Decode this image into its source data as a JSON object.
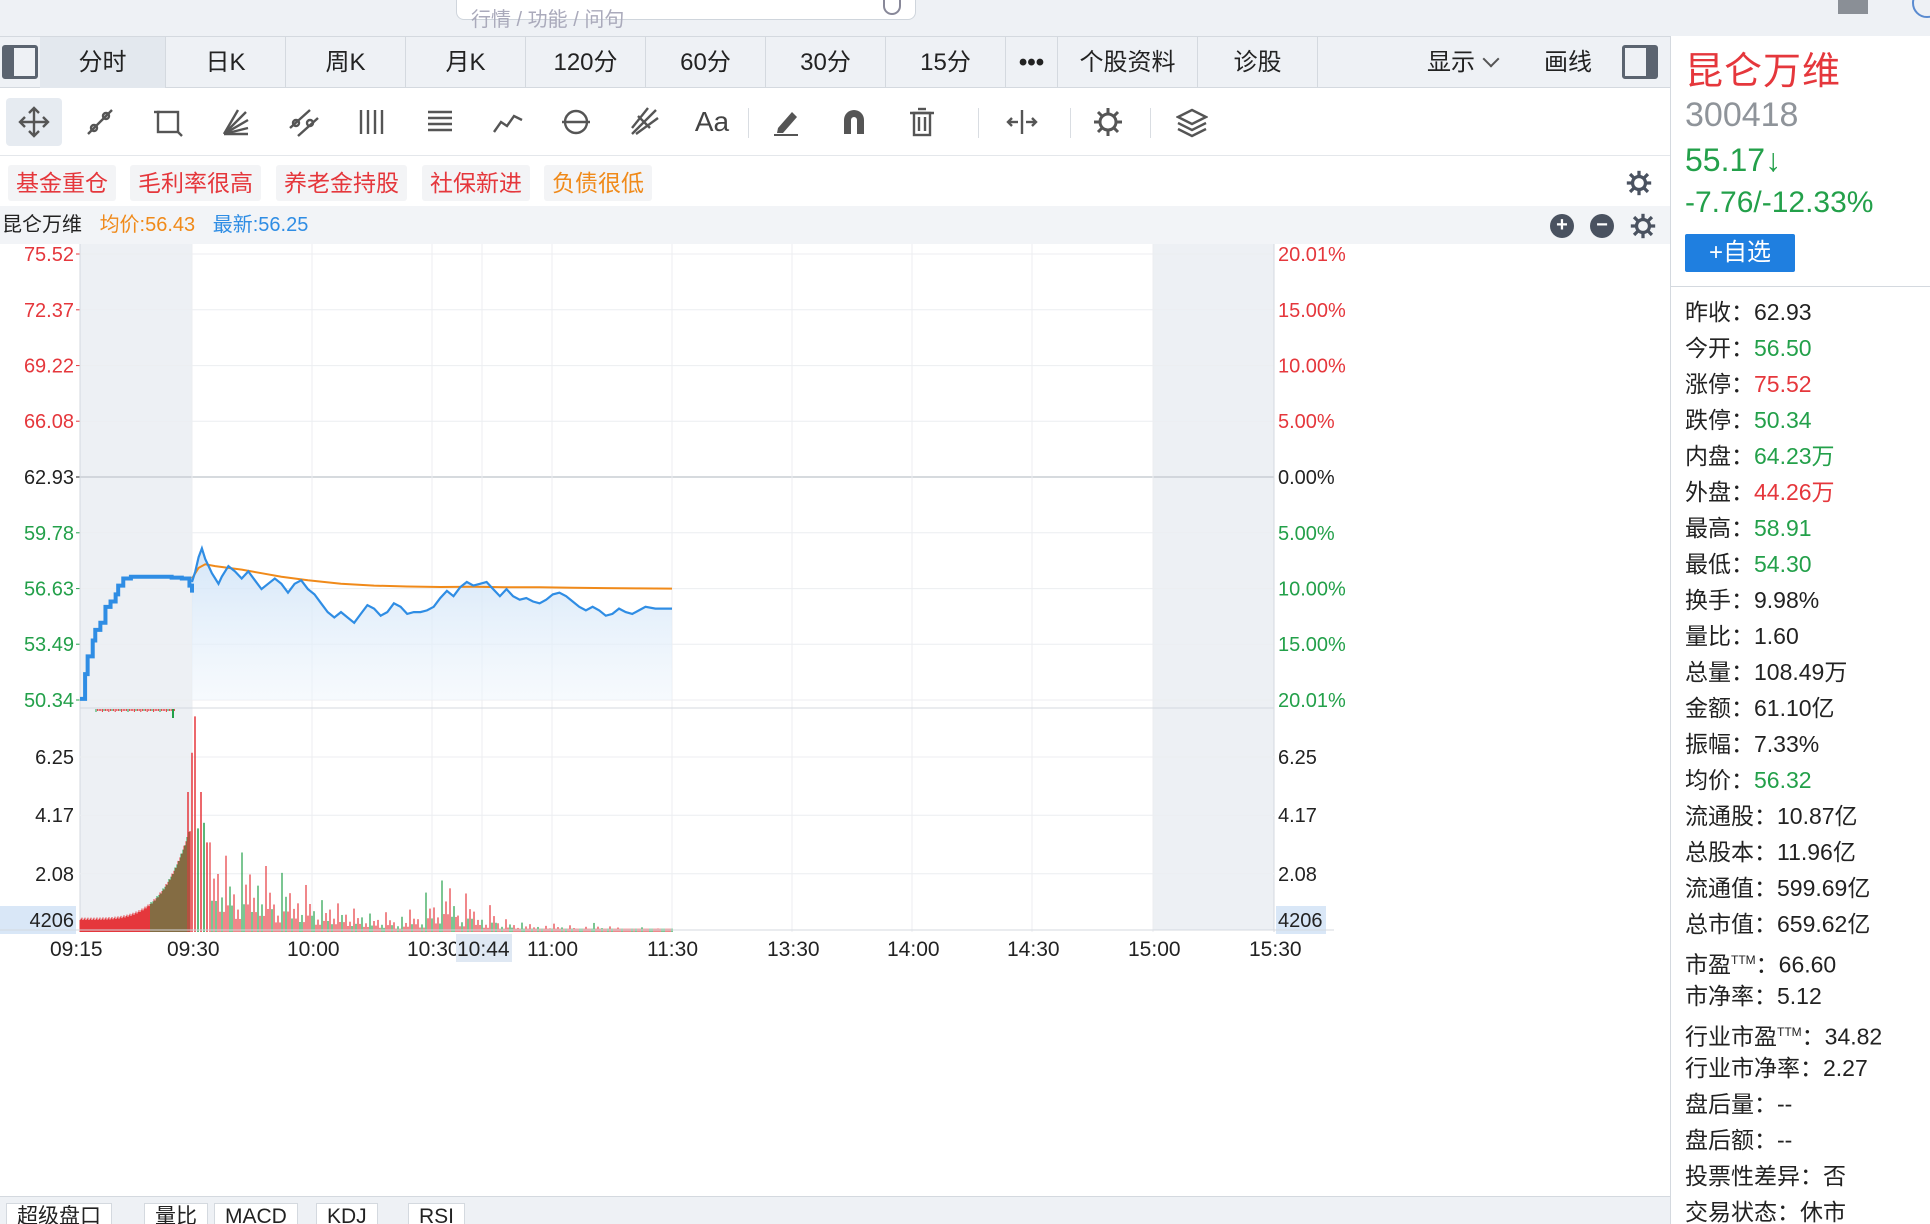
{
  "search": {
    "placeholder": "行情 / 功能 / 问句"
  },
  "tabs": [
    "分时",
    "日K",
    "周K",
    "月K",
    "120分",
    "60分",
    "30分",
    "15分",
    "•••",
    "个股资料",
    "诊股"
  ],
  "tab_active": "分时",
  "display_label": "显示",
  "draw_label": "画线",
  "tags": [
    "基金重仓",
    "毛利率很高",
    "养老金持股",
    "社保新进",
    "负债很低"
  ],
  "chart_header": {
    "name": "昆仑万维",
    "avg_label": "均价:56.43",
    "latest_label": "最新:56.25"
  },
  "stock": {
    "name": "昆仑万维",
    "code": "300418",
    "price": "55.17↓",
    "change": "-7.76/-12.33%",
    "watch_button": "+自选"
  },
  "stats": [
    {
      "label": "昨收：",
      "value": "62.93",
      "color": "neutral"
    },
    {
      "label": "今开：",
      "value": "56.50",
      "color": "down"
    },
    {
      "label": "涨停：",
      "value": "75.52",
      "color": "up"
    },
    {
      "label": "跌停：",
      "value": "50.34",
      "color": "down"
    },
    {
      "label": "内盘：",
      "value": "64.23万",
      "color": "down"
    },
    {
      "label": "外盘：",
      "value": "44.26万",
      "color": "up"
    },
    {
      "label": "最高：",
      "value": "58.91",
      "color": "down"
    },
    {
      "label": "最低：",
      "value": "54.30",
      "color": "down"
    },
    {
      "label": "换手：",
      "value": "9.98%",
      "color": "neutral"
    },
    {
      "label": "量比：",
      "value": "1.60",
      "color": "neutral"
    },
    {
      "label": "总量：",
      "value": "108.49万",
      "color": "neutral"
    },
    {
      "label": "金额：",
      "value": "61.10亿",
      "color": "neutral"
    },
    {
      "label": "振幅：",
      "value": "7.33%",
      "color": "neutral"
    },
    {
      "label": "均价：",
      "value": "56.32",
      "color": "down"
    },
    {
      "label": "流通股：",
      "value": "10.87亿",
      "color": "neutral"
    },
    {
      "label": "总股本：",
      "value": "11.96亿",
      "color": "neutral"
    },
    {
      "label": "流通值：",
      "value": "599.69亿",
      "color": "neutral"
    },
    {
      "label": "总市值：",
      "value": "659.62亿",
      "color": "neutral"
    },
    {
      "label": "市盈",
      "sup": "TTM",
      "label2": "：",
      "value": "66.60",
      "color": "neutral"
    },
    {
      "label": "市净率：",
      "value": "5.12",
      "color": "neutral"
    },
    {
      "label": "行业市盈",
      "sup": "TTM",
      "label2": "：",
      "value": "34.82",
      "color": "neutral"
    },
    {
      "label": "行业市净率：",
      "value": "2.27",
      "color": "neutral"
    },
    {
      "label": "盘后量：",
      "value": "--",
      "color": "neutral"
    },
    {
      "label": "盘后额：",
      "value": "--",
      "color": "neutral"
    },
    {
      "label": "投票性差异：",
      "value": "否",
      "color": "neutral"
    },
    {
      "label": "交易状态：",
      "value": "休市",
      "color": "neutral"
    }
  ],
  "bottom_tabs": [
    "超级盘口",
    "量比",
    "MACD",
    "KDJ",
    "RSI"
  ],
  "colors": {
    "up": "#e5373c",
    "down": "#23a04a",
    "price_line": "#2f8de4",
    "avg_line": "#f08a1a",
    "accent": "#1f7fe0"
  },
  "chart_data": {
    "type": "line",
    "price_axis_left": [
      "75.52",
      "72.37",
      "69.22",
      "66.08",
      "62.93",
      "59.78",
      "56.63",
      "53.49",
      "50.34"
    ],
    "price_values": [
      75.52,
      72.37,
      69.22,
      66.08,
      62.93,
      59.78,
      56.63,
      53.49,
      50.34
    ],
    "pct_axis_right": [
      "20.01%",
      "15.00%",
      "10.00%",
      "5.00%",
      "0.00%",
      "5.00%",
      "10.00%",
      "15.00%",
      "20.01%"
    ],
    "vol_axis_left": [
      "6.25",
      "4.17",
      "2.08",
      "4206"
    ],
    "vol_axis_right": [
      "6.25",
      "4.17",
      "2.08",
      "4206"
    ],
    "vol_values": [
      6.25,
      4.17,
      2.08
    ],
    "time_labels": [
      "09:15",
      "09:30",
      "10:00",
      "10:30",
      "10:44",
      "11:00",
      "11:30",
      "13:30",
      "14:00",
      "14:30",
      "15:00",
      "15:30"
    ],
    "highlighted_time": "10:44",
    "prev_close": 62.93,
    "price_range": [
      50.34,
      75.52
    ],
    "volume_range": [
      0,
      8.0
    ],
    "auction_series": [
      [
        0,
        50.4
      ],
      [
        2,
        51.8
      ],
      [
        3,
        52.8
      ],
      [
        5,
        53.7
      ],
      [
        6,
        54.3
      ],
      [
        8,
        54.7
      ],
      [
        10,
        55.6
      ],
      [
        12,
        55.9
      ],
      [
        14,
        56.3
      ],
      [
        15,
        56.8
      ],
      [
        17,
        57.2
      ],
      [
        20,
        57.3
      ],
      [
        24,
        57.3
      ],
      [
        30,
        57.3
      ],
      [
        36,
        57.25
      ],
      [
        40,
        57.2
      ],
      [
        43,
        56.8
      ],
      [
        44,
        56.4
      ]
    ],
    "price_series": [
      [
        45,
        57.0
      ],
      [
        46,
        57.6
      ],
      [
        47,
        58.4
      ],
      [
        48,
        58.9
      ],
      [
        49,
        58.3
      ],
      [
        50,
        57.9
      ],
      [
        51,
        57.5
      ],
      [
        52,
        57.2
      ],
      [
        53,
        56.9
      ],
      [
        54,
        57.3
      ],
      [
        56,
        57.9
      ],
      [
        58,
        57.6
      ],
      [
        60,
        57.2
      ],
      [
        62,
        57.6
      ],
      [
        64,
        57.1
      ],
      [
        66,
        56.6
      ],
      [
        68,
        56.9
      ],
      [
        70,
        57.2
      ],
      [
        72,
        56.9
      ],
      [
        74,
        56.4
      ],
      [
        76,
        56.9
      ],
      [
        78,
        57.1
      ],
      [
        80,
        56.6
      ],
      [
        82,
        56.3
      ],
      [
        84,
        55.8
      ],
      [
        86,
        55.3
      ],
      [
        88,
        55.0
      ],
      [
        90,
        55.3
      ],
      [
        92,
        55.0
      ],
      [
        94,
        54.7
      ],
      [
        96,
        55.2
      ],
      [
        98,
        55.7
      ],
      [
        100,
        55.5
      ],
      [
        102,
        55.1
      ],
      [
        104,
        55.3
      ],
      [
        106,
        55.8
      ],
      [
        108,
        55.6
      ],
      [
        110,
        55.2
      ],
      [
        112,
        55.3
      ],
      [
        114,
        55.3
      ],
      [
        116,
        55.4
      ],
      [
        118,
        55.6
      ],
      [
        120,
        56.1
      ],
      [
        122,
        56.5
      ],
      [
        124,
        56.2
      ],
      [
        126,
        56.7
      ],
      [
        128,
        57.0
      ],
      [
        130,
        56.8
      ],
      [
        132,
        56.9
      ],
      [
        134,
        57.0
      ],
      [
        136,
        56.6
      ],
      [
        138,
        56.2
      ],
      [
        140,
        56.6
      ],
      [
        142,
        56.2
      ],
      [
        144,
        56.0
      ],
      [
        146,
        56.1
      ],
      [
        148,
        55.9
      ],
      [
        150,
        55.8
      ],
      [
        152,
        56.0
      ],
      [
        154,
        56.3
      ],
      [
        156,
        56.4
      ],
      [
        158,
        56.2
      ],
      [
        160,
        55.9
      ],
      [
        162,
        55.6
      ],
      [
        164,
        55.4
      ],
      [
        166,
        55.6
      ],
      [
        168,
        55.4
      ],
      [
        170,
        55.1
      ],
      [
        172,
        55.2
      ],
      [
        174,
        55.5
      ],
      [
        176,
        55.3
      ],
      [
        178,
        55.2
      ],
      [
        180,
        55.4
      ],
      [
        182,
        55.6
      ],
      [
        185,
        55.5
      ],
      [
        190,
        55.5
      ]
    ],
    "avg_series": [
      [
        45,
        57.2
      ],
      [
        47,
        57.8
      ],
      [
        49,
        58.0
      ],
      [
        52,
        57.9
      ],
      [
        56,
        57.8
      ],
      [
        60,
        57.7
      ],
      [
        66,
        57.5
      ],
      [
        72,
        57.3
      ],
      [
        80,
        57.1
      ],
      [
        90,
        56.9
      ],
      [
        100,
        56.8
      ],
      [
        110,
        56.75
      ],
      [
        120,
        56.72
      ],
      [
        130,
        56.73
      ],
      [
        140,
        56.7
      ],
      [
        150,
        56.7
      ],
      [
        160,
        56.68
      ],
      [
        170,
        56.66
      ],
      [
        180,
        56.64
      ],
      [
        190,
        56.63
      ]
    ]
  }
}
